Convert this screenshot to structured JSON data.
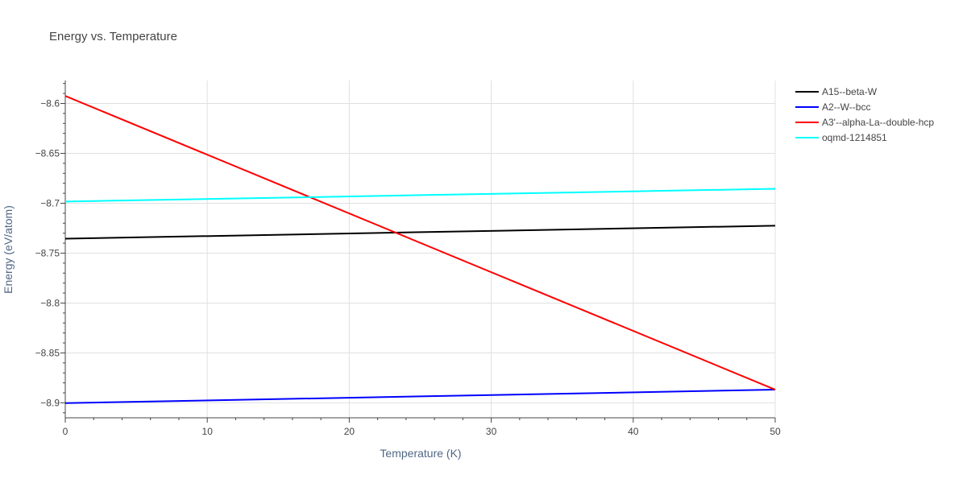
{
  "chart_data": {
    "type": "line",
    "title": "Energy vs. Temperature",
    "xlabel": "Temperature (K)",
    "ylabel": "Energy (eV/atom)",
    "xlim": [
      0,
      50
    ],
    "ylim": [
      -8.915,
      -8.577
    ],
    "x_ticks": [
      0,
      10,
      20,
      30,
      40,
      50
    ],
    "x_tick_labels": [
      "0",
      "10",
      "20",
      "30",
      "40",
      "50"
    ],
    "y_ticks": [
      -8.9,
      -8.85,
      -8.8,
      -8.75,
      -8.7,
      -8.65,
      -8.6
    ],
    "y_tick_labels": [
      "−8.9",
      "−8.85",
      "−8.8",
      "−8.75",
      "−8.7",
      "−8.65",
      "−8.6"
    ],
    "grid": true,
    "legend_position": "top-right, outside plot",
    "series": [
      {
        "name": "A15--beta-W",
        "color": "#000000",
        "x": [
          0,
          50
        ],
        "y": [
          -8.7355,
          -8.7225
        ]
      },
      {
        "name": "A2--W--bcc",
        "color": "#0000ff",
        "x": [
          0,
          50
        ],
        "y": [
          -8.9003,
          -8.8868
        ]
      },
      {
        "name": "A3'--alpha-La--double-hcp",
        "color": "#ff0000",
        "x": [
          0,
          50
        ],
        "y": [
          -8.5925,
          -8.8868
        ]
      },
      {
        "name": "oqmd-1214851",
        "color": "#00ffff",
        "x": [
          0,
          50
        ],
        "y": [
          -8.6983,
          -8.6855
        ]
      }
    ]
  }
}
